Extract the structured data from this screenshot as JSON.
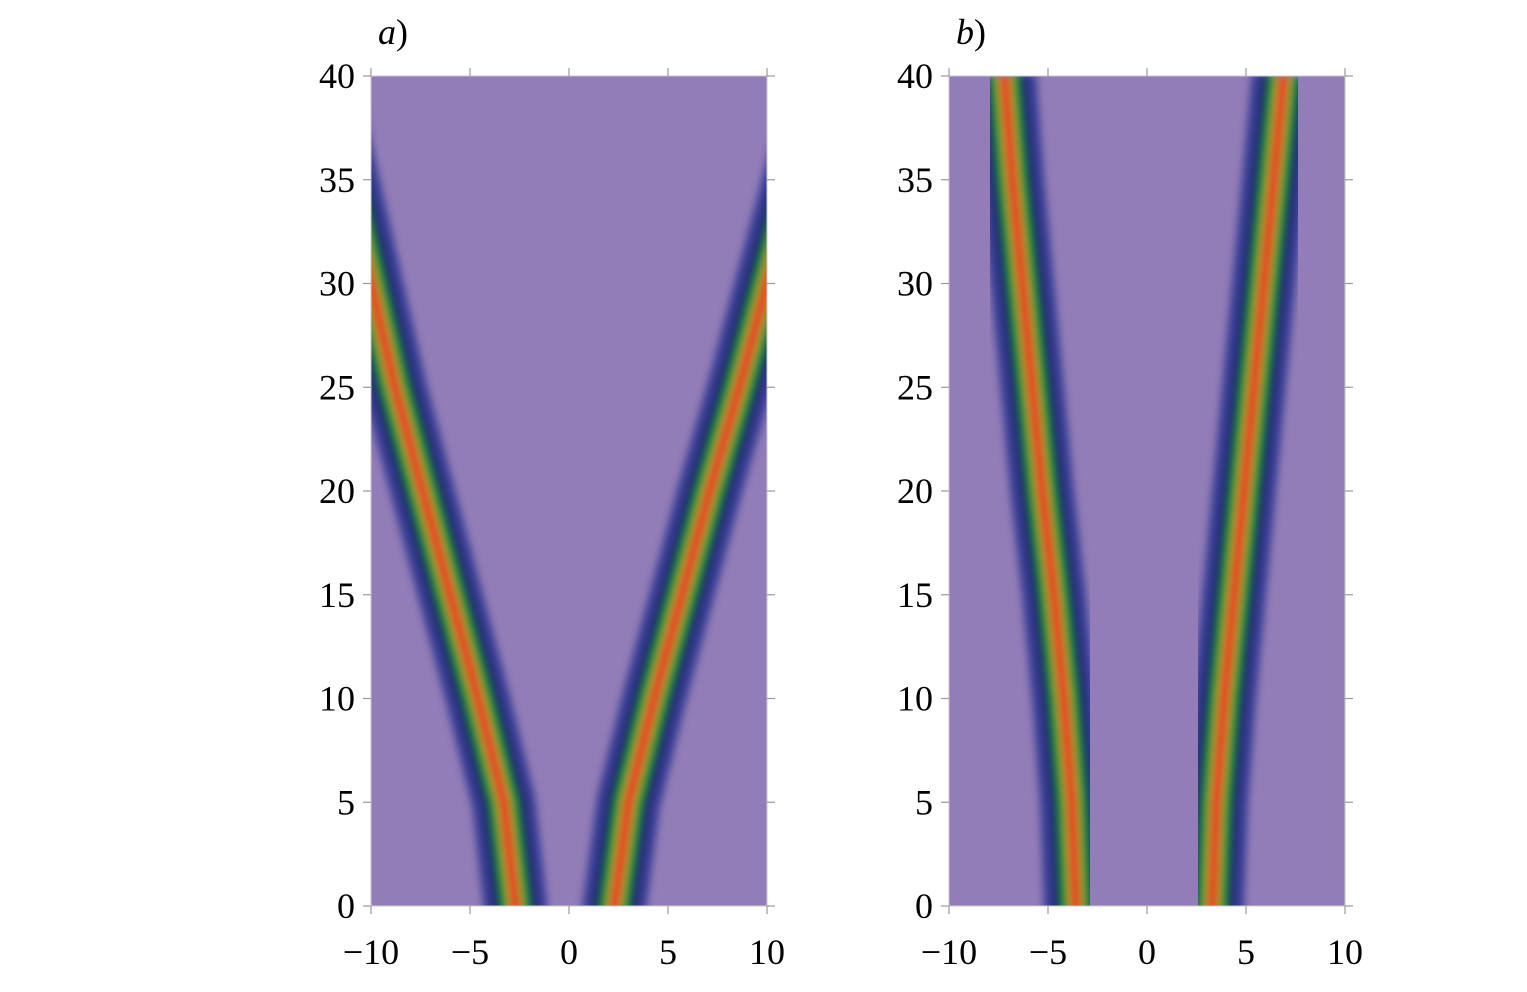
{
  "chart_data": [
    {
      "type": "heatmap",
      "panel_label": "a",
      "panel_suffix": ")",
      "xlim": [
        -10,
        10
      ],
      "ylim": [
        0,
        40
      ],
      "x_ticks": [
        -10,
        -5,
        0,
        5,
        10
      ],
      "x_tick_labels": [
        "−10",
        "−5",
        "0",
        "5",
        "10"
      ],
      "y_ticks": [
        0,
        5,
        10,
        15,
        20,
        25,
        30,
        35,
        40
      ],
      "y_tick_labels": [
        "0",
        "5",
        "10",
        "15",
        "20",
        "25",
        "30",
        "35",
        "40"
      ],
      "background_color": "#937db8",
      "ridges": [
        {
          "points": [
            [
              -2.7,
              0
            ],
            [
              -3.3,
              5
            ],
            [
              -4.6,
              10
            ],
            [
              -6.0,
              15
            ],
            [
              -7.4,
              20
            ],
            [
              -8.8,
              25
            ],
            [
              -10.0,
              30
            ]
          ]
        },
        {
          "points": [
            [
              2.3,
              0
            ],
            [
              3.0,
              5
            ],
            [
              4.3,
              10
            ],
            [
              5.7,
              15
            ],
            [
              7.1,
              20
            ],
            [
              8.6,
              25
            ],
            [
              10.0,
              30
            ]
          ]
        }
      ]
    },
    {
      "type": "heatmap",
      "panel_label": "b",
      "panel_suffix": ")",
      "xlim": [
        -10,
        10
      ],
      "ylim": [
        0,
        40
      ],
      "x_ticks": [
        -10,
        -5,
        0,
        5,
        10
      ],
      "x_tick_labels": [
        "−10",
        "−5",
        "0",
        "5",
        "10"
      ],
      "y_ticks": [
        0,
        5,
        10,
        15,
        20,
        25,
        30,
        35,
        40
      ],
      "y_tick_labels": [
        "0",
        "5",
        "10",
        "15",
        "20",
        "25",
        "30",
        "35",
        "40"
      ],
      "background_color": "#937db8",
      "ridges": [
        {
          "points": [
            [
              -3.6,
              0
            ],
            [
              -3.8,
              5
            ],
            [
              -4.2,
              10
            ],
            [
              -4.7,
              15
            ],
            [
              -5.3,
              20
            ],
            [
              -5.8,
              25
            ],
            [
              -6.3,
              30
            ],
            [
              -6.8,
              35
            ],
            [
              -7.2,
              40
            ]
          ]
        },
        {
          "points": [
            [
              3.3,
              0
            ],
            [
              3.5,
              5
            ],
            [
              3.9,
              10
            ],
            [
              4.4,
              15
            ],
            [
              4.9,
              20
            ],
            [
              5.4,
              25
            ],
            [
              5.9,
              30
            ],
            [
              6.4,
              35
            ],
            [
              6.9,
              40
            ]
          ]
        }
      ]
    }
  ]
}
